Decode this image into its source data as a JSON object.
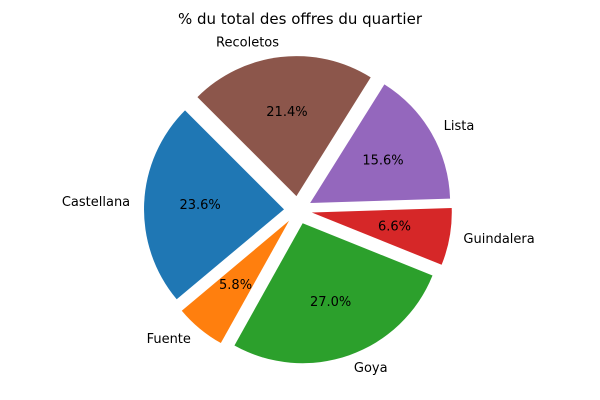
{
  "chart_data": {
    "type": "pie",
    "title": "% du total des offres du quartier",
    "slices": [
      {
        "label": "Castellana",
        "value": 23.6,
        "pct_label": "23.6%",
        "color": "#1f77b4"
      },
      {
        "label": "Fuente",
        "value": 5.8,
        "pct_label": "5.8%",
        "color": "#ff7f0e"
      },
      {
        "label": "Goya",
        "value": 27.0,
        "pct_label": "27.0%",
        "color": "#2ca02c"
      },
      {
        "label": "Guindalera",
        "value": 6.6,
        "pct_label": "6.6%",
        "color": "#d62728"
      },
      {
        "label": "Lista",
        "value": 15.6,
        "pct_label": "15.6%",
        "color": "#9467bd"
      },
      {
        "label": "Recoletos",
        "value": 21.4,
        "pct_label": "21.4%",
        "color": "#8c564b"
      }
    ],
    "start_angle_deg": 135,
    "direction": "counterclockwise",
    "exploded": true
  }
}
